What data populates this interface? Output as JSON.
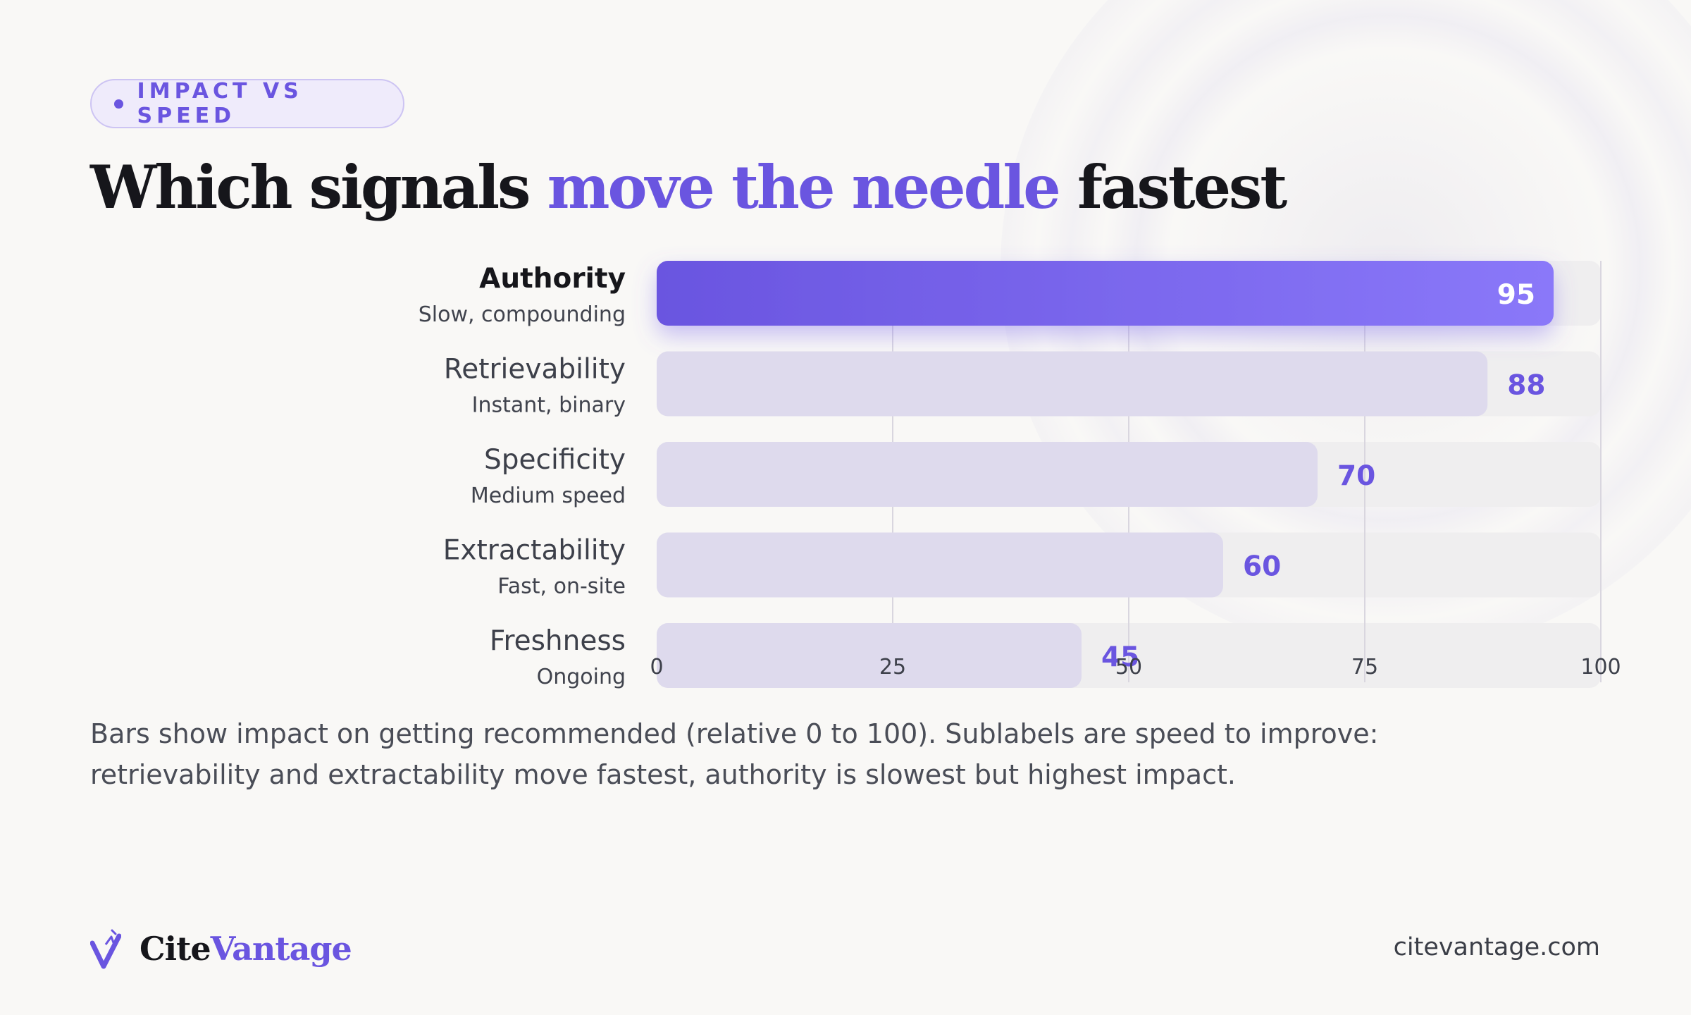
{
  "eyebrow": "IMPACT VS SPEED",
  "title": {
    "prefix": "Which signals",
    "highlight": "move the needle",
    "suffix": "fastest"
  },
  "caption": {
    "line1": "Bars show impact on getting recommended (relative 0 to 100). Sublabels are speed to improve:",
    "line2": "retrievability and extractability move fastest, authority is slowest but highest impact."
  },
  "brand": {
    "name_part1": "Cite",
    "name_part2": "Vantage",
    "logo_icon": "check-v-icon"
  },
  "site": "citevantage.com",
  "colors": {
    "accent": "#6a55e0",
    "bar_primary_start": "#6a55e0",
    "bar_primary_end": "#8a78f9",
    "bar_secondary": "#dedaed",
    "track": "#efeeef"
  },
  "chart_data": {
    "type": "bar",
    "orientation": "horizontal",
    "categories": [
      "Authority",
      "Retrievability",
      "Specificity",
      "Extractability",
      "Freshness"
    ],
    "sublabels": [
      "Slow, compounding",
      "Instant, binary",
      "Medium speed",
      "Fast, on-site",
      "Ongoing"
    ],
    "values": [
      95,
      88,
      70,
      60,
      45
    ],
    "highlight_index": 0,
    "xlim": [
      0,
      100
    ],
    "xticks": [
      0,
      25,
      50,
      75,
      100
    ],
    "grid": true,
    "legend": "none"
  }
}
